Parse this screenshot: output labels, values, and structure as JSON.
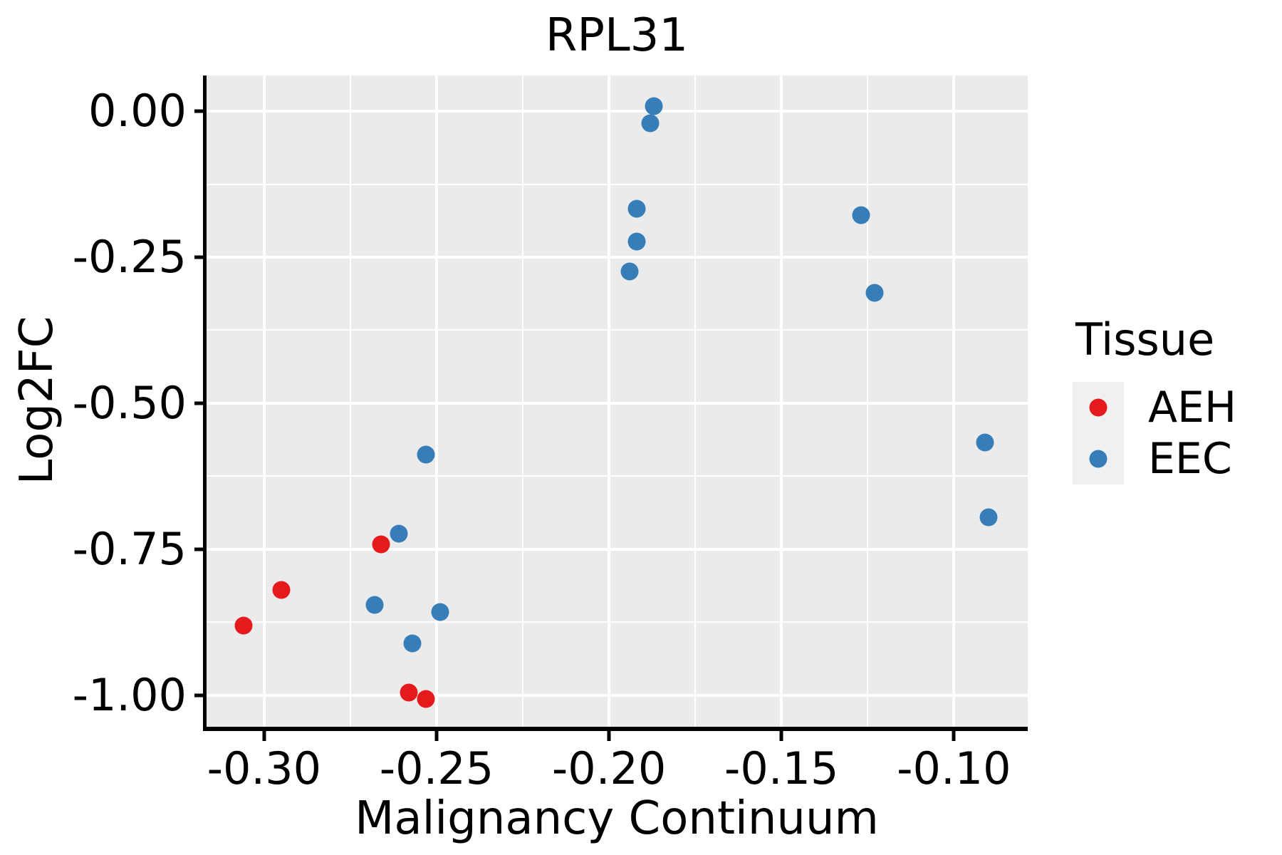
{
  "chart_data": {
    "type": "scatter",
    "title": "RPL31",
    "xlabel": "Malignancy Continuum",
    "ylabel": "Log2FC",
    "legend_title": "Tissue",
    "legend_position": "right",
    "grid": true,
    "panel_bg": "#EBEBEB",
    "grid_color": "#FFFFFF",
    "axis_color": "#000000",
    "legend_key_bg": "#F0F0F0",
    "marker_diameter_px": 25,
    "xlim": [
      -0.3169,
      -0.0786
    ],
    "ylim": [
      -1.0537,
      0.061
    ],
    "x_ticks": [
      {
        "value": -0.3,
        "label": "-0.30"
      },
      {
        "value": -0.25,
        "label": "-0.25"
      },
      {
        "value": -0.2,
        "label": "-0.20"
      },
      {
        "value": -0.15,
        "label": "-0.15"
      },
      {
        "value": -0.1,
        "label": "-0.10"
      }
    ],
    "x_minor_ticks": [
      -0.275,
      -0.225,
      -0.175,
      -0.125
    ],
    "y_ticks": [
      {
        "value": 0.0,
        "label": "0.00"
      },
      {
        "value": -0.25,
        "label": "-0.25"
      },
      {
        "value": -0.5,
        "label": "-0.50"
      },
      {
        "value": -0.75,
        "label": "-0.75"
      },
      {
        "value": -1.0,
        "label": "-1.00"
      }
    ],
    "y_minor_ticks": [
      -0.125,
      -0.375,
      -0.625,
      -0.875
    ],
    "series": [
      {
        "name": "AEH",
        "color": "#E41A1C",
        "points": [
          [
            -0.306,
            -0.88
          ],
          [
            -0.295,
            -0.82
          ],
          [
            -0.266,
            -0.741
          ],
          [
            -0.258,
            -0.995
          ],
          [
            -0.253,
            -1.006
          ]
        ]
      },
      {
        "name": "EEC",
        "color": "#377EB8",
        "points": [
          [
            -0.268,
            -0.845
          ],
          [
            -0.261,
            -0.723
          ],
          [
            -0.257,
            -0.911
          ],
          [
            -0.253,
            -0.588
          ],
          [
            -0.249,
            -0.857
          ],
          [
            -0.194,
            -0.274
          ],
          [
            -0.192,
            -0.223
          ],
          [
            -0.192,
            -0.167
          ],
          [
            -0.187,
            0.009
          ],
          [
            -0.188,
            -0.021
          ],
          [
            -0.127,
            -0.178
          ],
          [
            -0.123,
            -0.311
          ],
          [
            -0.091,
            -0.567
          ],
          [
            -0.09,
            -0.695
          ]
        ]
      }
    ]
  }
}
